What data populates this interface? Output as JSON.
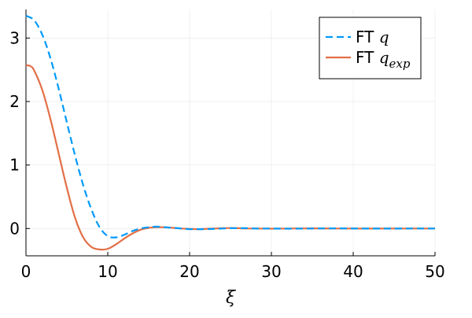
{
  "chart_data": {
    "type": "line",
    "title": "",
    "xlabel": "ξ",
    "ylabel": "",
    "xlim": [
      0,
      50
    ],
    "ylim": [
      -0.43,
      3.45
    ],
    "xticks": [
      0,
      10,
      20,
      30,
      40,
      50
    ],
    "yticks": [
      0,
      1,
      2,
      3
    ],
    "grid": true,
    "legend_position": "top-right",
    "series": [
      {
        "name": "FT q",
        "legend_prefix": "FT ",
        "legend_math": "q",
        "legend_sub": "",
        "color": "#009af9",
        "dash": "dashed",
        "x": [
          0,
          1,
          2,
          3,
          4,
          5,
          6,
          7,
          8,
          9,
          10,
          11,
          12,
          13,
          14,
          15,
          16,
          17,
          18,
          19,
          20,
          21,
          22,
          23,
          24,
          25,
          26,
          27,
          28,
          29,
          30,
          32,
          35,
          38,
          41,
          44,
          47,
          50
        ],
        "y": [
          3.35,
          3.28,
          3.05,
          2.68,
          2.2,
          1.67,
          1.15,
          0.68,
          0.3,
          0.02,
          -0.12,
          -0.14,
          -0.1,
          -0.04,
          0.0,
          0.02,
          0.03,
          0.02,
          0.01,
          0.0,
          -0.01,
          -0.01,
          -0.01,
          -0.005,
          0.0,
          0.005,
          0.005,
          0.005,
          0.0,
          0.0,
          0.0,
          -0.003,
          0.0,
          0.002,
          0.0,
          -0.001,
          0.0,
          0.0
        ]
      },
      {
        "name": "FT q_exp",
        "legend_prefix": "FT ",
        "legend_math": "q",
        "legend_sub": "exp",
        "color": "#e26f46",
        "dash": "solid",
        "x": [
          0,
          0.5,
          1,
          2,
          3,
          4,
          5,
          6,
          7,
          8,
          9,
          10,
          11,
          12,
          13,
          14,
          15,
          16,
          17,
          18,
          19,
          20,
          21,
          22,
          23,
          24,
          25,
          26,
          27,
          28,
          30,
          32,
          35,
          38,
          41,
          44,
          47,
          50
        ],
        "y": [
          2.57,
          2.56,
          2.49,
          2.18,
          1.72,
          1.18,
          0.64,
          0.17,
          -0.14,
          -0.29,
          -0.33,
          -0.32,
          -0.25,
          -0.16,
          -0.08,
          -0.02,
          0.01,
          0.02,
          0.02,
          0.01,
          0.0,
          -0.005,
          -0.01,
          -0.005,
          0.0,
          0.005,
          0.008,
          0.005,
          0.0,
          0.0,
          -0.002,
          0.0,
          0.002,
          0.0,
          -0.001,
          0.0,
          0.0,
          0.0
        ]
      }
    ]
  }
}
